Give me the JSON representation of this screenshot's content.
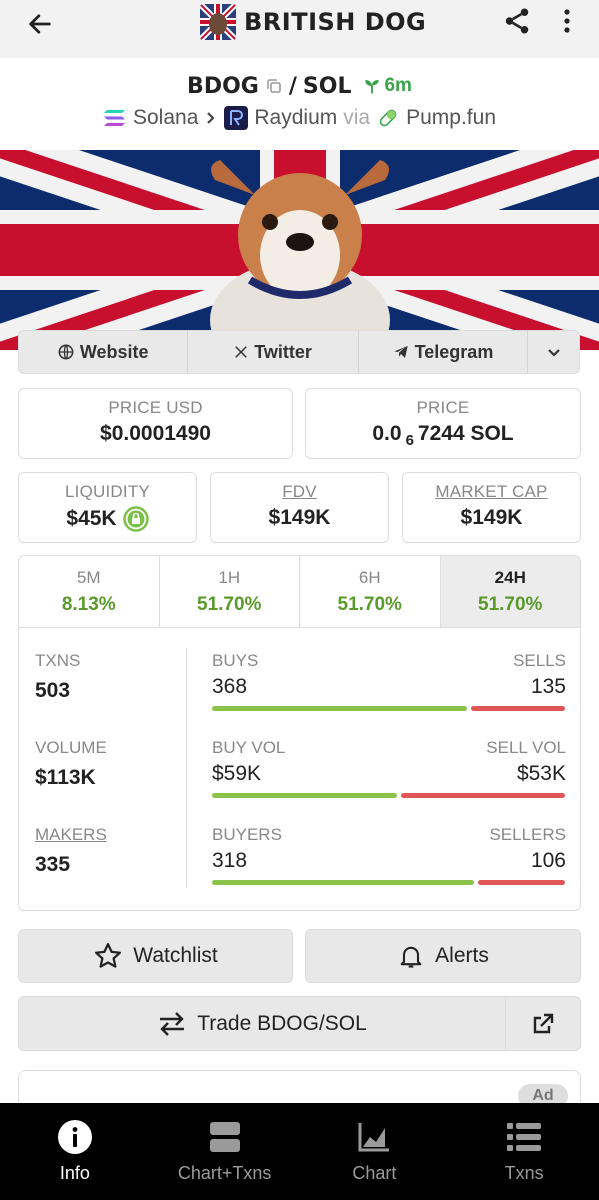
{
  "header": {
    "title": "BRITISH DOG",
    "back_icon": "arrow-left-icon",
    "share_icon": "share-icon",
    "more_icon": "more-vertical-icon"
  },
  "pair": {
    "base": "BDOG",
    "slash": "/",
    "quote": "SOL",
    "age": "6m",
    "chain": "Solana",
    "dex": "Raydium",
    "via": "via",
    "launchpad": "Pump.fun"
  },
  "social": {
    "website": "Website",
    "twitter": "Twitter",
    "telegram": "Telegram"
  },
  "prices": {
    "price_usd_label": "PRICE USD",
    "price_usd": "$0.0001490",
    "price_label": "PRICE",
    "price_prefix": "0.0",
    "price_sub": "6",
    "price_rest": "7244 SOL",
    "liquidity_label": "LIQUIDITY",
    "liquidity": "$45K",
    "fdv_label": "FDV",
    "fdv": "$149K",
    "mcap_label": "MARKET CAP",
    "mcap": "$149K"
  },
  "timeframes": [
    {
      "label": "5M",
      "change": "8.13%"
    },
    {
      "label": "1H",
      "change": "51.70%"
    },
    {
      "label": "6H",
      "change": "51.70%"
    },
    {
      "label": "24H",
      "change": "51.70%"
    }
  ],
  "stats": {
    "txns_label": "TXNS",
    "txns": "503",
    "buys_label": "BUYS",
    "buys": "368",
    "sells_label": "SELLS",
    "sells": "135",
    "buys_ratio": 0.73,
    "volume_label": "VOLUME",
    "volume": "$113K",
    "buyvol_label": "BUY VOL",
    "buyvol": "$59K",
    "sellvol_label": "SELL VOL",
    "sellvol": "$53K",
    "vol_ratio": 0.53,
    "makers_label": "MAKERS",
    "makers": "335",
    "buyers_label": "BUYERS",
    "buyers": "318",
    "sellers_label": "SELLERS",
    "sellers": "106",
    "buyers_ratio": 0.75
  },
  "actions": {
    "watchlist": "Watchlist",
    "alerts": "Alerts",
    "trade": "Trade BDOG/SOL",
    "ad": "Ad"
  },
  "nav": [
    {
      "label": "Info",
      "icon": "info-icon"
    },
    {
      "label": "Chart+Txns",
      "icon": "chart-txns-icon"
    },
    {
      "label": "Chart",
      "icon": "chart-icon"
    },
    {
      "label": "Txns",
      "icon": "list-icon"
    }
  ],
  "colors": {
    "positive": "#5a9a2a",
    "buy_bar": "#8bc34a",
    "sell_bar": "#e05555",
    "age_green": "#3aa44a"
  }
}
